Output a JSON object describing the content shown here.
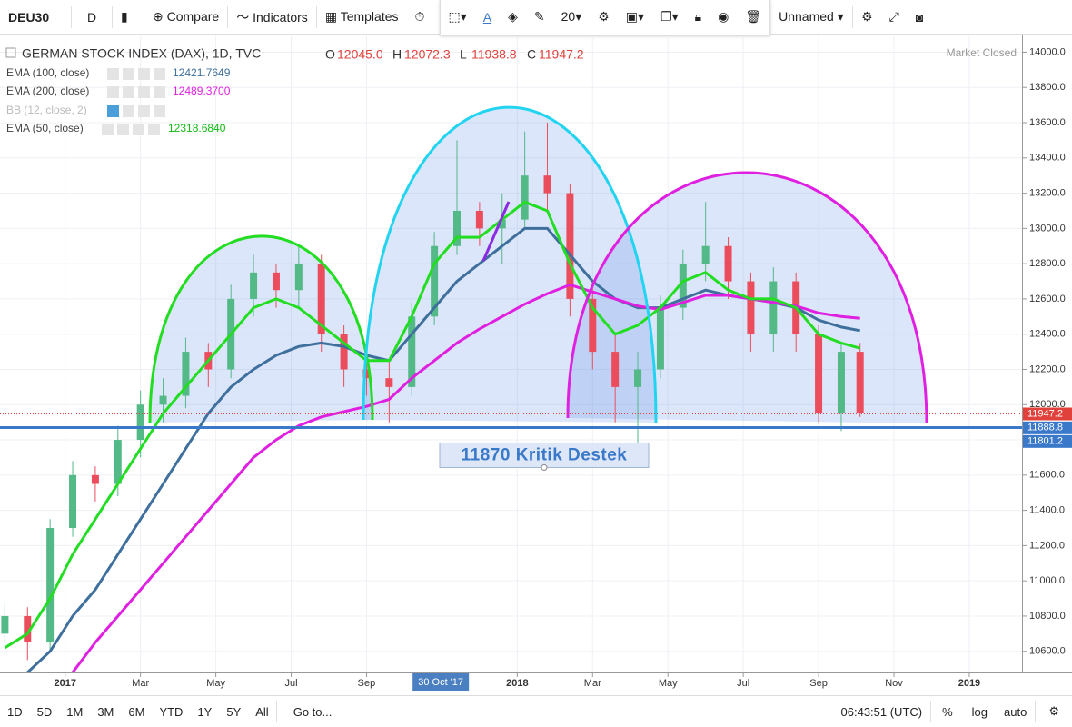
{
  "toolbar": {
    "symbol": "DEU30",
    "interval": "D",
    "compare": "Compare",
    "indicators": "Indicators",
    "templates": "Templates",
    "line_width": "20",
    "layout": "Unnamed"
  },
  "bottom_bar": {
    "ranges": [
      "1D",
      "5D",
      "1M",
      "3M",
      "6M",
      "YTD",
      "1Y",
      "5Y",
      "All"
    ],
    "goto": "Go to...",
    "clock": "06:43:51 (UTC)",
    "percent": "%",
    "log": "log",
    "auto": "auto"
  },
  "legend": {
    "title": "GERMAN STOCK INDEX (DAX), 1D, TVC",
    "ohlc": [
      {
        "key": "O",
        "value": "12045.0"
      },
      {
        "key": "H",
        "value": "12072.3"
      },
      {
        "key": "L",
        "value": "11938.8"
      },
      {
        "key": "C",
        "value": "11947.2"
      }
    ],
    "bb": "BB (12, close, 2)",
    "market_status": "Market Closed"
  },
  "chart_data": {
    "type": "candlestick",
    "x": [
      -1.6,
      -1.0,
      -0.4,
      0.2,
      0.8,
      1.4,
      2.0,
      2.6,
      3.2,
      3.8,
      4.4,
      5.0,
      5.6,
      6.2,
      6.8,
      7.4,
      8.0,
      8.6,
      9.2,
      9.8,
      10.4,
      11.0,
      11.6,
      12.2,
      12.8,
      13.4,
      14.0,
      14.6,
      15.2,
      15.8,
      16.4,
      17.0,
      17.6,
      18.2,
      18.8,
      19.4,
      20.0,
      20.6,
      21.1
    ],
    "open": [
      10700,
      10800,
      10650,
      11300,
      11600,
      11550,
      11800,
      12000,
      12050,
      12300,
      12200,
      12600,
      12750,
      12650,
      12800,
      12400,
      12200,
      12150,
      12100,
      12500,
      12900,
      13100,
      13000,
      13050,
      13300,
      13200,
      12600,
      12300,
      12100,
      12200,
      12550,
      12800,
      12900,
      12700,
      12400,
      12700,
      12400,
      11950,
      12300
    ],
    "high": [
      10880,
      10850,
      11350,
      11680,
      11650,
      11880,
      12080,
      12150,
      12380,
      12350,
      12680,
      12850,
      12800,
      12900,
      12850,
      12450,
      12300,
      12250,
      12580,
      12980,
      13500,
      13150,
      13200,
      13550,
      13600,
      13250,
      12700,
      12400,
      12300,
      12620,
      12880,
      13150,
      12950,
      12750,
      12780,
      12750,
      12450,
      12350,
      12350
    ],
    "low": [
      10650,
      10550,
      10600,
      11250,
      11450,
      11480,
      11700,
      11900,
      11980,
      12100,
      12150,
      12500,
      12550,
      12550,
      12300,
      12100,
      12050,
      11900,
      12050,
      12450,
      12850,
      12900,
      12800,
      13000,
      13100,
      12500,
      12200,
      11900,
      11780,
      12150,
      12480,
      12700,
      12600,
      12300,
      12300,
      12300,
      11900,
      11850,
      11930
    ],
    "close": [
      10800,
      10650,
      11300,
      11600,
      11550,
      11800,
      12000,
      12050,
      12300,
      12200,
      12600,
      12750,
      12650,
      12800,
      12400,
      12200,
      12150,
      12100,
      12500,
      12900,
      13100,
      13000,
      13050,
      13300,
      13200,
      12600,
      12300,
      12100,
      12200,
      12550,
      12800,
      12900,
      12700,
      12400,
      12700,
      12400,
      11950,
      12300,
      11950
    ],
    "up_color": "#53b987",
    "down_color": "#eb4d5c",
    "series": [
      {
        "name": "EMA (100, close)",
        "color": "#3f6f9c",
        "value_label": "12421.7649",
        "values": [
          null,
          10480,
          10600,
          10800,
          10950,
          11150,
          11350,
          11550,
          11750,
          11950,
          12100,
          12200,
          12280,
          12330,
          12350,
          12330,
          12280,
          12250,
          12400,
          12550,
          12700,
          12800,
          12900,
          13000,
          13000,
          12850,
          12700,
          12600,
          12550,
          12550,
          12600,
          12650,
          12620,
          12600,
          12580,
          12550,
          12480,
          12440,
          12420
        ]
      },
      {
        "name": "EMA (200, close)",
        "color": "#e020e0",
        "value_label": "12489.3700",
        "values": [
          null,
          null,
          null,
          10480,
          10650,
          10800,
          10950,
          11100,
          11250,
          11400,
          11550,
          11700,
          11800,
          11880,
          11930,
          11960,
          11990,
          12030,
          12150,
          12250,
          12350,
          12430,
          12500,
          12570,
          12630,
          12680,
          12640,
          12600,
          12560,
          12540,
          12580,
          12620,
          12620,
          12600,
          12580,
          12560,
          12520,
          12500,
          12490
        ]
      },
      {
        "name": "EMA (50, close)",
        "color": "#22dd22",
        "value_label": "12318.6840",
        "values": [
          10620,
          10700,
          10900,
          11150,
          11350,
          11550,
          11750,
          11950,
          12100,
          12250,
          12400,
          12550,
          12600,
          12550,
          12450,
          12350,
          12250,
          12250,
          12500,
          12800,
          12950,
          12950,
          13050,
          13150,
          13100,
          12800,
          12550,
          12400,
          12450,
          12550,
          12700,
          12750,
          12650,
          12600,
          12600,
          12550,
          12400,
          12350,
          12320
        ]
      }
    ],
    "xlim": [
      -1.73,
      25.4
    ],
    "xticks": [
      {
        "value": 0,
        "label": "2017"
      },
      {
        "value": 2,
        "label": "Mar"
      },
      {
        "value": 4,
        "label": "May"
      },
      {
        "value": 6,
        "label": "Jul"
      },
      {
        "value": 8,
        "label": "Sep"
      },
      {
        "value": 12,
        "label": "2018"
      },
      {
        "value": 14,
        "label": "Mar"
      },
      {
        "value": 16,
        "label": "May"
      },
      {
        "value": 18,
        "label": "Jul"
      },
      {
        "value": 20,
        "label": "Sep"
      },
      {
        "value": 22,
        "label": "Nov"
      },
      {
        "value": 24,
        "label": "2019"
      }
    ],
    "crosshair_x": {
      "value": 9.97,
      "label": "30 Oct '17"
    },
    "ylim": [
      10480,
      14090
    ],
    "yticks": [
      {
        "value": 10600,
        "label": "10600.0"
      },
      {
        "value": 10800,
        "label": "10800.0"
      },
      {
        "value": 11000,
        "label": "11000.0"
      },
      {
        "value": 11200,
        "label": "11200.0"
      },
      {
        "value": 11400,
        "label": "11400.0"
      },
      {
        "value": 11600,
        "label": "11600.0"
      },
      {
        "value": 11800,
        "label": "11800.0"
      },
      {
        "value": 12000,
        "label": "12000.0"
      },
      {
        "value": 12200,
        "label": "12200.0"
      },
      {
        "value": 12400,
        "label": "12400.0"
      },
      {
        "value": 12600,
        "label": "12600.0"
      },
      {
        "value": 12800,
        "label": "12800.0"
      },
      {
        "value": 13000,
        "label": "13000.0"
      },
      {
        "value": 13200,
        "label": "13200.0"
      },
      {
        "value": 13400,
        "label": "13400.0"
      },
      {
        "value": 13600,
        "label": "13600.0"
      },
      {
        "value": 13800,
        "label": "13800.0"
      },
      {
        "value": 14000,
        "label": "14000.0"
      }
    ],
    "price_tags": {
      "values": [
        11947.2,
        11888.8,
        11801.2
      ],
      "colors": [
        "#e0413b",
        "#3a78c9",
        "#3a78c9"
      ]
    },
    "support": {
      "value": 11870,
      "label": "11870 Kritik Destek",
      "color": "#3a78c9"
    },
    "grid": true
  }
}
